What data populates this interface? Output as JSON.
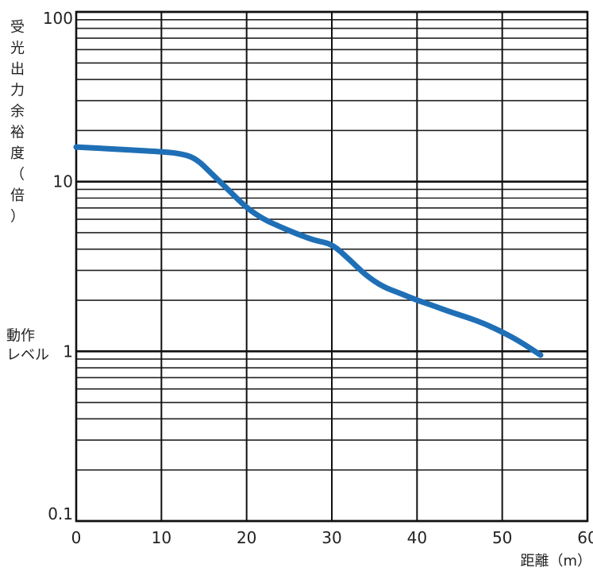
{
  "chart_data": {
    "type": "line",
    "title": "",
    "xlabel": "距離（m）",
    "ylabel": "受光出力余裕度（倍）",
    "x_scale": "linear",
    "y_scale": "log",
    "xlim": [
      0,
      60
    ],
    "ylim": [
      0.1,
      100
    ],
    "x_ticks": [
      0,
      10,
      20,
      30,
      40,
      50,
      60
    ],
    "x_tick_labels": [
      "0",
      "10",
      "20",
      "30",
      "40",
      "50",
      "60"
    ],
    "y_ticks": [
      0.1,
      1,
      10,
      100
    ],
    "y_tick_labels": [
      "0.1",
      "1",
      "10",
      "100"
    ],
    "grid": true,
    "annotations": [
      {
        "text_lines": [
          "動作",
          "レベル"
        ],
        "at_y": 1
      }
    ],
    "series": [
      {
        "color": "#1f6fb6",
        "x": [
          0,
          5,
          10,
          12,
          14,
          16,
          18,
          20,
          22,
          24,
          26,
          28,
          30,
          32,
          34,
          36,
          38,
          40,
          42,
          44,
          46,
          48,
          50,
          52,
          54.5
        ],
        "y": [
          16,
          15.5,
          15,
          14.7,
          13.8,
          11,
          8.8,
          7,
          6,
          5.4,
          4.9,
          4.5,
          4.3,
          3.5,
          2.8,
          2.4,
          2.2,
          2.0,
          1.85,
          1.7,
          1.58,
          1.45,
          1.3,
          1.15,
          0.95
        ]
      }
    ]
  }
}
